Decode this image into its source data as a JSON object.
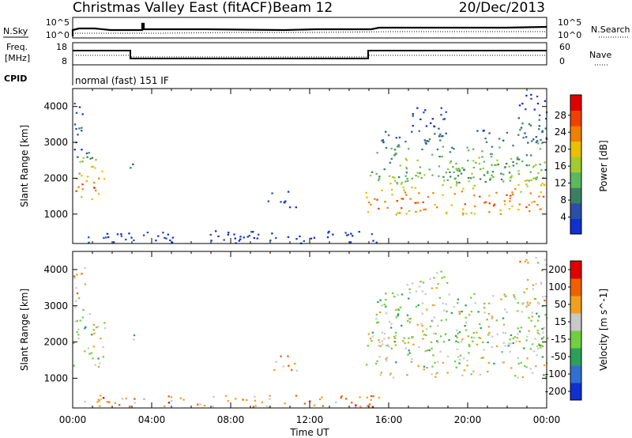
{
  "header": {
    "title": "Christmas Valley East (fitACF)",
    "beam": "Beam 12",
    "date": "20/Dec/2013"
  },
  "top_panels": {
    "nsky_label": "N.Sky",
    "nsky_ticks": [
      "10^5",
      "10^0"
    ],
    "nsearch_label": "N.Search",
    "nsearch_ticks": [
      "10^5",
      "10^0"
    ],
    "freq_label_1": "Freq.",
    "freq_label_2": "[MHz]",
    "freq_ticks": [
      "18",
      "8"
    ],
    "nave_label": "Nave",
    "nave_ticks": [
      "60",
      "0"
    ],
    "cpid_label": "CPID",
    "cpid_text": "normal (fast) 151 IF"
  },
  "chart_data": [
    {
      "type": "heatmap",
      "name": "power-panel",
      "ylabel": "Slant Range [km]",
      "ylim": [
        180,
        4500
      ],
      "yticks": [
        "1000",
        "2000",
        "3000",
        "4000"
      ],
      "xlim": [
        0,
        24
      ],
      "colorbar_label": "Power [dB]",
      "colorbar_ticks": [
        "4",
        "8",
        "12",
        "16",
        "20",
        "24",
        "28"
      ],
      "colors": [
        "#1030d0",
        "#2a4fa8",
        "#3a8060",
        "#5cb85c",
        "#a0cc30",
        "#e8c000",
        "#f08000",
        "#f04000",
        "#e00000"
      ],
      "regions": [
        {
          "t0": 0.0,
          "t1": 1.6,
          "r0": 1300,
          "r1": 2800,
          "level": 0.78
        },
        {
          "t0": 0.0,
          "t1": 0.6,
          "r0": 2600,
          "r1": 4300,
          "level": 0.2
        },
        {
          "t0": 2.8,
          "t1": 3.1,
          "r0": 2000,
          "r1": 2600,
          "level": 0.4
        },
        {
          "t0": 9.8,
          "t1": 11.3,
          "r0": 1200,
          "r1": 1650,
          "level": 0.1
        },
        {
          "t0": 14.8,
          "t1": 24.0,
          "r0": 1000,
          "r1": 2300,
          "level": 0.8
        },
        {
          "t0": 15.3,
          "t1": 24.0,
          "r0": 1900,
          "r1": 3400,
          "level": 0.45
        },
        {
          "t0": 16.8,
          "t1": 19.0,
          "r0": 3400,
          "r1": 4000,
          "level": 0.12
        },
        {
          "t0": 22.5,
          "t1": 24.0,
          "r0": 3000,
          "r1": 4400,
          "level": 0.25
        },
        {
          "t0": 0.5,
          "t1": 15.5,
          "r0": 200,
          "r1": 550,
          "level": 0.12
        }
      ]
    },
    {
      "type": "heatmap",
      "name": "velocity-panel",
      "ylabel": "Slant Range [km]",
      "ylim": [
        180,
        4500
      ],
      "yticks": [
        "1000",
        "2000",
        "3000",
        "4000"
      ],
      "xlim": [
        0,
        24
      ],
      "xticks": [
        "00:00",
        "04:00",
        "08:00",
        "12:00",
        "16:00",
        "20:00",
        "00:00"
      ],
      "xlabel": "Time UT",
      "colorbar_label": "Velocity [m s^-1]",
      "colorbar_ticks": [
        "200",
        "100",
        "50",
        "15",
        "-15",
        "-50",
        "-100",
        "-200"
      ],
      "colors": [
        "#1030d0",
        "#3070d0",
        "#2aa05a",
        "#70d040",
        "#c8c8c8",
        "#f0a020",
        "#f06000",
        "#e00000"
      ],
      "regions": [
        {
          "t0": 0.0,
          "t1": 1.6,
          "r0": 1300,
          "r1": 2800,
          "level": 0.5
        },
        {
          "t0": 0.0,
          "t1": 0.6,
          "r0": 2600,
          "r1": 4300,
          "level": 0.6
        },
        {
          "t0": 2.8,
          "t1": 3.1,
          "r0": 2000,
          "r1": 2600,
          "level": 0.5
        },
        {
          "t0": 9.8,
          "t1": 11.3,
          "r0": 1200,
          "r1": 1650,
          "level": 0.7
        },
        {
          "t0": 14.8,
          "t1": 24.0,
          "r0": 1000,
          "r1": 2300,
          "level": 0.5
        },
        {
          "t0": 15.3,
          "t1": 24.0,
          "r0": 1900,
          "r1": 3400,
          "level": 0.5
        },
        {
          "t0": 16.8,
          "t1": 19.0,
          "r0": 3400,
          "r1": 4000,
          "level": 0.5
        },
        {
          "t0": 22.5,
          "t1": 24.0,
          "r0": 3000,
          "r1": 4400,
          "level": 0.6
        },
        {
          "t0": 0.5,
          "t1": 15.5,
          "r0": 200,
          "r1": 550,
          "level": 0.72
        }
      ]
    }
  ]
}
